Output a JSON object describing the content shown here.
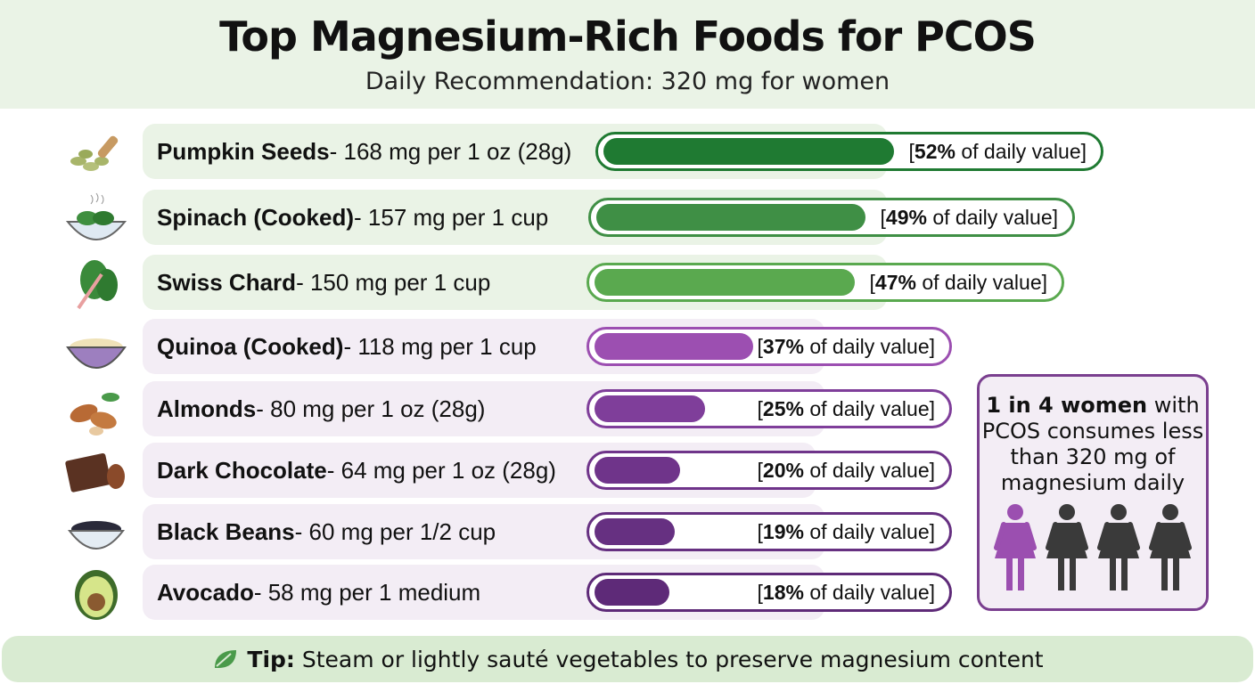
{
  "header": {
    "title": "Top Magnesium-Rich Foods for PCOS",
    "subtitle": "Daily Recommendation: 320 mg for women"
  },
  "chart_data": {
    "type": "bar",
    "orientation": "horizontal",
    "unit": "% of daily value",
    "categories": [
      "Pumpkin Seeds",
      "Spinach (Cooked)",
      "Swiss Chard",
      "Quinoa (Cooked)",
      "Almonds",
      "Dark Chocolate",
      "Black Beans",
      "Avocado"
    ],
    "values": [
      52,
      49,
      47,
      37,
      25,
      20,
      19,
      18
    ],
    "rows": [
      {
        "name": "Pumpkin Seeds",
        "detail": " - 168 mg per 1 oz (28g)",
        "mg": 168,
        "pct": 52,
        "pct_label": "52%",
        "suffix": " of daily value]",
        "icon": "pumpkin-seeds-icon",
        "color": "#1f7a32",
        "group": "green"
      },
      {
        "name": "Spinach (Cooked)",
        "detail": " - 157 mg per 1 cup",
        "mg": 157,
        "pct": 49,
        "pct_label": "49%",
        "suffix": " of daily value]",
        "icon": "spinach-bowl-icon",
        "color": "#3f8f45",
        "group": "green"
      },
      {
        "name": "Swiss Chard",
        "detail": " - 150 mg per 1 cup",
        "mg": 150,
        "pct": 47,
        "pct_label": "47%",
        "suffix": " of daily value]",
        "icon": "swiss-chard-icon",
        "color": "#5aa94f",
        "group": "green"
      },
      {
        "name": "Quinoa (Cooked)",
        "detail": " - 118 mg per 1 cup",
        "mg": 118,
        "pct": 37,
        "pct_label": "37%",
        "suffix": " of daily value]",
        "icon": "quinoa-bowl-icon",
        "color": "#9c4fb1",
        "group": "purple"
      },
      {
        "name": "Almonds",
        "detail": " - 80 mg per 1 oz (28g)",
        "mg": 80,
        "pct": 25,
        "pct_label": "25%",
        "suffix": " of daily value]",
        "icon": "almonds-icon",
        "color": "#7f3e9a",
        "group": "purple"
      },
      {
        "name": "Dark Chocolate",
        "detail": " - 64 mg per 1 oz (28g)",
        "mg": 64,
        "pct": 20,
        "pct_label": "20%",
        "suffix": " of daily value]",
        "icon": "dark-chocolate-icon",
        "color": "#6f348a",
        "group": "purple"
      },
      {
        "name": "Black Beans",
        "detail": " - 60 mg per 1/2 cup",
        "mg": 60,
        "pct": 19,
        "pct_label": "19%",
        "suffix": " of daily value]",
        "icon": "black-beans-icon",
        "color": "#663081",
        "group": "purple"
      },
      {
        "name": "Avocado",
        "detail": " - 58 mg per 1 medium",
        "mg": 58,
        "pct": 18,
        "pct_label": "18%",
        "suffix": " of daily value]",
        "icon": "avocado-icon",
        "color": "#5e2a78",
        "group": "purple"
      }
    ]
  },
  "stat": {
    "bold": "1 in 4 women",
    "rest": " with PCOS consumes less than 320 mg of magnesium daily",
    "highlight_color": "#9b4fb0",
    "other_color": "#3a3a3a",
    "women_count": 4,
    "highlighted": 1
  },
  "tip": {
    "label": "Tip:",
    "text": " Steam or lightly sauté vegetables to preserve magnesium content",
    "icon": "leaf-icon"
  },
  "colors": {
    "green_bg": "#eaf3e6",
    "purple_bg": "#f3edf5"
  }
}
